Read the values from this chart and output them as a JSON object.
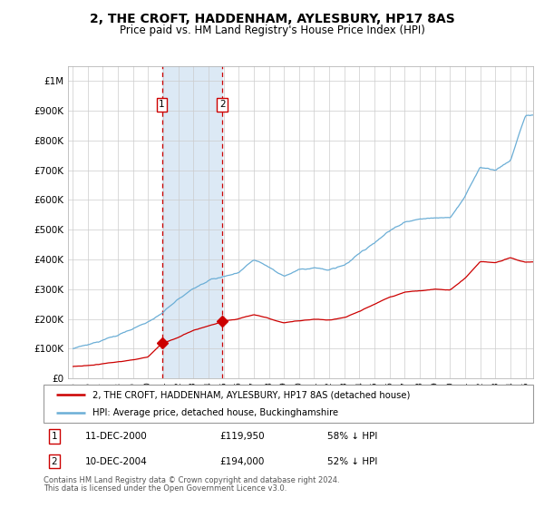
{
  "title": "2, THE CROFT, HADDENHAM, AYLESBURY, HP17 8AS",
  "subtitle": "Price paid vs. HM Land Registry's House Price Index (HPI)",
  "legend_line1": "2, THE CROFT, HADDENHAM, AYLESBURY, HP17 8AS (detached house)",
  "legend_line2": "HPI: Average price, detached house, Buckinghamshire",
  "footer": "Contains HM Land Registry data © Crown copyright and database right 2024.\nThis data is licensed under the Open Government Licence v3.0.",
  "sale1_date": "11-DEC-2000",
  "sale1_price": 119950,
  "sale1_label": "1",
  "sale1_pct": "58% ↓ HPI",
  "sale2_date": "10-DEC-2004",
  "sale2_price": 194000,
  "sale2_label": "2",
  "sale2_pct": "52% ↓ HPI",
  "red_color": "#cc0000",
  "blue_color": "#6baed6",
  "shade_color": "#dce9f5",
  "background_color": "#ffffff",
  "grid_color": "#cccccc",
  "ylim_min": 0,
  "ylim_max": 1050000,
  "sale1_x": 2000.917,
  "sale2_x": 2004.917
}
